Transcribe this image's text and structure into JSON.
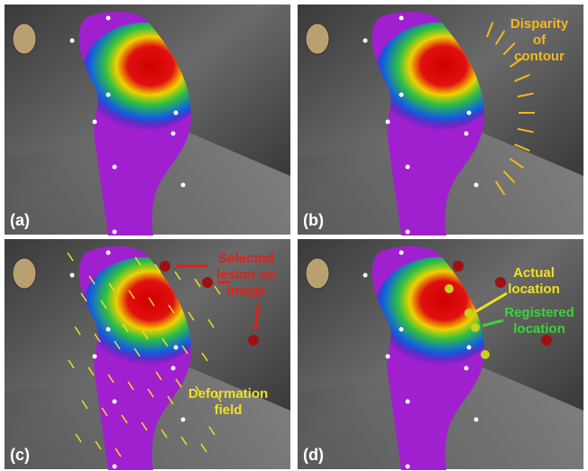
{
  "panels": [
    {
      "label": "(a)"
    },
    {
      "label": "(b)",
      "annotations": [
        {
          "lines": [
            "Disparity",
            "of",
            "contour"
          ],
          "color": "#f2b91c"
        }
      ]
    },
    {
      "label": "(c)",
      "annotations": [
        {
          "lines": [
            "Selected",
            "lesion on",
            "image"
          ],
          "color": "#e0201a"
        },
        {
          "lines": [
            "Deformation",
            "field"
          ],
          "color": "#f0e020"
        }
      ]
    },
    {
      "label": "(d)",
      "annotations": [
        {
          "lines": [
            "Actual",
            "location"
          ],
          "color": "#f0e020"
        },
        {
          "lines": [
            "Registered",
            "location"
          ],
          "color": "#3cd23c"
        }
      ]
    }
  ]
}
